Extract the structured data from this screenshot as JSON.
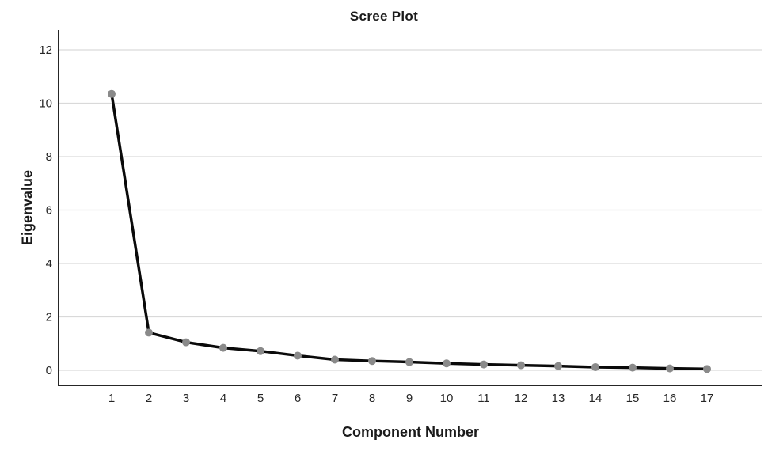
{
  "chart_data": {
    "type": "line",
    "title": "Scree Plot",
    "xlabel": "Component Number",
    "ylabel": "Eigenvalue",
    "x": [
      1,
      2,
      3,
      4,
      5,
      6,
      7,
      8,
      9,
      10,
      11,
      12,
      13,
      14,
      15,
      16,
      17
    ],
    "values": [
      10.35,
      1.41,
      1.05,
      0.84,
      0.72,
      0.55,
      0.4,
      0.35,
      0.31,
      0.26,
      0.22,
      0.19,
      0.16,
      0.12,
      0.1,
      0.07,
      0.05
    ],
    "y_ticks": [
      0,
      2,
      4,
      6,
      8,
      10,
      12
    ],
    "ylim": [
      -0.55,
      12.75
    ],
    "grid": "horizontal",
    "legend": "none",
    "colors": {
      "line": "#0a0a0a",
      "marker": "#8a8a8a",
      "grid": "#d9d9d9",
      "axis": "#262626",
      "tick_text": "#262626",
      "background": "#ffffff"
    }
  }
}
